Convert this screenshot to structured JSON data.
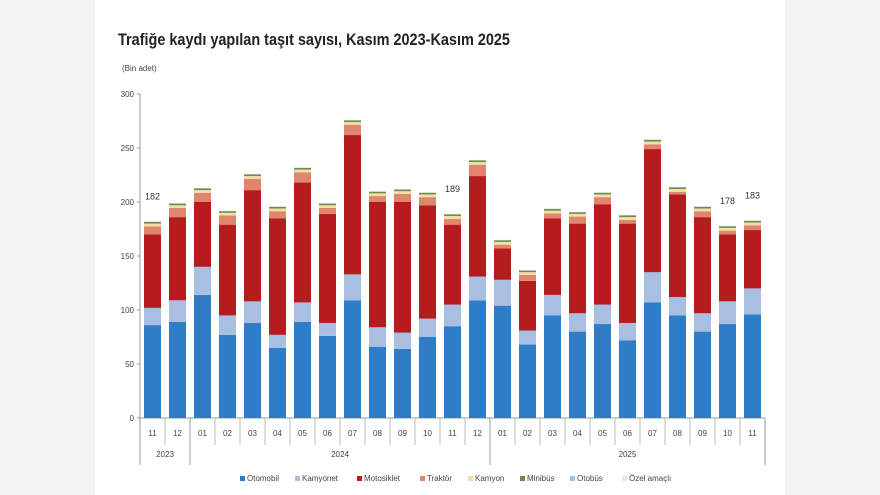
{
  "chart_data": {
    "type": "bar",
    "stacked": true,
    "title": "Trafiğe kaydı yapılan taşıt sayısı, Kasım 2023-Kasım 2025",
    "ylabel": "(Bin adet)",
    "ylim": [
      0,
      300
    ],
    "yticks": [
      0,
      50,
      100,
      150,
      200,
      250,
      300
    ],
    "categories": [
      "11",
      "12",
      "01",
      "02",
      "03",
      "04",
      "05",
      "06",
      "07",
      "08",
      "09",
      "10",
      "11",
      "12",
      "01",
      "02",
      "03",
      "04",
      "05",
      "06",
      "07",
      "08",
      "09",
      "10",
      "11"
    ],
    "years": [
      {
        "label": "2023",
        "count": 2
      },
      {
        "label": "2024",
        "count": 12
      },
      {
        "label": "2025",
        "count": 11
      }
    ],
    "legend_position": "bottom",
    "series": [
      {
        "name": "Otomobil",
        "color": "#2f7dc6",
        "values": [
          86,
          89,
          114,
          77,
          88,
          65,
          89,
          76,
          109,
          66,
          64,
          75,
          85,
          109,
          104,
          68,
          95,
          80,
          87,
          72,
          107,
          95,
          80,
          87,
          96
        ]
      },
      {
        "name": "Kamyonet",
        "color": "#a8bfe2",
        "values": [
          16,
          20,
          26,
          18,
          20,
          12,
          18,
          12,
          24,
          18,
          15,
          17,
          20,
          22,
          24,
          13,
          19,
          17,
          18,
          16,
          28,
          17,
          17,
          21,
          24
        ]
      },
      {
        "name": "Motosiklet",
        "color": "#b41c1e",
        "values": [
          68,
          77,
          60,
          84,
          103,
          108,
          111,
          101,
          129,
          116,
          121,
          105,
          74,
          93,
          29,
          46,
          71,
          83,
          93,
          92,
          114,
          95,
          89,
          62,
          54
        ]
      },
      {
        "name": "Traktör",
        "color": "#e0866c",
        "values": [
          7.5,
          8.5,
          8.5,
          8.5,
          10.5,
          6.5,
          9.5,
          5.5,
          9.5,
          5.5,
          7.5,
          7.5,
          5.5,
          10.5,
          3.5,
          5.5,
          4.5,
          6.5,
          6.5,
          3.5,
          4.5,
          2.5,
          5.5,
          3.5,
          4.5
        ]
      },
      {
        "name": "Kamyon",
        "color": "#f6dea6",
        "values": [
          2.5,
          2.5,
          2.5,
          2.5,
          2.5,
          2.5,
          2.5,
          2.5,
          2.5,
          2.5,
          2.5,
          2.5,
          2.5,
          2.5,
          2.5,
          2.5,
          2.5,
          2.5,
          2.5,
          2.5,
          2.5,
          2.5,
          2.5,
          2.5,
          2.5
        ]
      },
      {
        "name": "Minibüs",
        "color": "#6d8d4c",
        "values": [
          1.5,
          1.5,
          1.5,
          1.5,
          1.5,
          1.5,
          1.5,
          1.5,
          1.5,
          1.5,
          1.5,
          1.5,
          1.5,
          1.5,
          1.5,
          1.5,
          1.5,
          1.5,
          1.5,
          1.5,
          1.5,
          1.5,
          1.5,
          1.5,
          1.5
        ]
      },
      {
        "name": "Otobüs",
        "color": "#9cc4e4",
        "values": [
          0.3,
          0.3,
          0.3,
          0.3,
          0.3,
          0.3,
          0.3,
          0.3,
          0.3,
          0.3,
          0.3,
          0.3,
          0.3,
          0.3,
          0.3,
          0.3,
          0.3,
          0.3,
          0.3,
          0.3,
          0.3,
          0.3,
          0.3,
          0.3,
          0.3
        ]
      },
      {
        "name": "Özel amaçlı",
        "color": "#efe6dc",
        "values": [
          0.2,
          0.2,
          0.2,
          0.2,
          0.2,
          0.2,
          0.2,
          0.2,
          0.2,
          0.2,
          0.2,
          0.2,
          0.2,
          0.2,
          0.2,
          0.2,
          0.2,
          0.2,
          0.2,
          0.2,
          0.2,
          0.2,
          0.2,
          0.2,
          0.2
        ]
      }
    ],
    "data_labels": [
      {
        "index": 0,
        "text": "182"
      },
      {
        "index": 12,
        "text": "189"
      },
      {
        "index": 23,
        "text": "178"
      },
      {
        "index": 24,
        "text": "183"
      }
    ]
  }
}
